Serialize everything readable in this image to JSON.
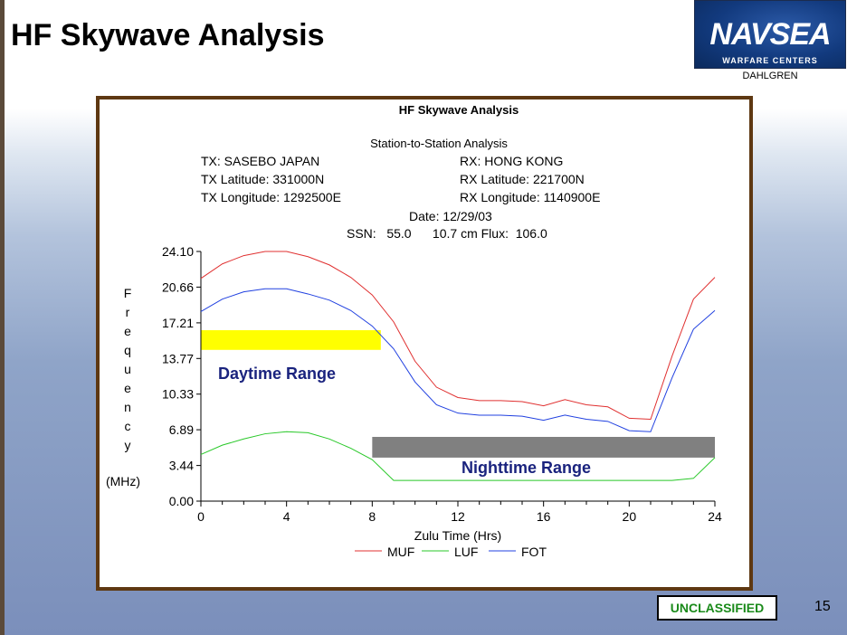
{
  "slide": {
    "title": "HF Skywave Analysis",
    "logo": {
      "main": "NAVSEA",
      "sub": "WARFARE CENTERS",
      "site": "DAHLGREN"
    },
    "classification": "UNCLASSIFIED",
    "page_number": "15"
  },
  "colors": {
    "MUF": "#e03030",
    "LUF": "#28c828",
    "FOT": "#2040e0",
    "daytime_bar": "#ffff00",
    "nighttime_bar": "#808080",
    "annotation_text": "#1a237e",
    "frame": "#5e3812"
  },
  "chart_data": {
    "type": "line",
    "title": "HF Skywave Analysis",
    "header": {
      "analysis": "Station-to-Station Analysis",
      "tx": "TX:  SASEBO JAPAN",
      "tx_lat": "TX Latitude:  331000N",
      "tx_lon": "TX Longitude:  1292500E",
      "rx": "RX:  HONG KONG",
      "rx_lat": "RX Latitude:  221700N",
      "rx_lon": "RX Longitude:  1140900E",
      "date": "Date:  12/29/03",
      "ssn": "SSN:   55.0      10.7 cm Flux:  106.0"
    },
    "ylabel_letters": [
      "F",
      "r",
      "e",
      "q",
      "u",
      "e",
      "n",
      "c",
      "y"
    ],
    "ylabel_unit": "(MHz)",
    "xlabel": "Zulu Time (Hrs)",
    "xlim": [
      0,
      24
    ],
    "ylim": [
      0,
      24.1
    ],
    "x_ticks": [
      "0",
      "4",
      "8",
      "12",
      "16",
      "20",
      "24"
    ],
    "y_ticks": [
      "0.00",
      "3.44",
      "6.89",
      "10.33",
      "13.77",
      "17.21",
      "20.66",
      "24.10"
    ],
    "x": [
      0,
      1,
      2,
      3,
      4,
      5,
      6,
      7,
      8,
      9,
      10,
      11,
      12,
      13,
      14,
      15,
      16,
      17,
      18,
      19,
      20,
      21,
      22,
      23,
      24
    ],
    "series": [
      {
        "name": "MUF",
        "values": [
          21.5,
          22.9,
          23.7,
          24.1,
          24.1,
          23.6,
          22.8,
          21.6,
          19.9,
          17.3,
          13.5,
          11.0,
          10.0,
          9.7,
          9.7,
          9.6,
          9.2,
          9.8,
          9.3,
          9.1,
          8.0,
          7.9,
          14.0,
          19.5,
          21.6
        ]
      },
      {
        "name": "LUF",
        "values": [
          4.5,
          5.4,
          6.0,
          6.5,
          6.7,
          6.6,
          6.0,
          5.1,
          4.0,
          2.0,
          2.0,
          2.0,
          2.0,
          2.0,
          2.0,
          2.0,
          2.0,
          2.0,
          2.0,
          2.0,
          2.0,
          2.0,
          2.0,
          2.2,
          4.2
        ]
      },
      {
        "name": "FOT",
        "values": [
          18.3,
          19.5,
          20.2,
          20.5,
          20.5,
          20.0,
          19.4,
          18.4,
          16.9,
          14.7,
          11.5,
          9.3,
          8.5,
          8.3,
          8.3,
          8.2,
          7.8,
          8.3,
          7.9,
          7.7,
          6.8,
          6.7,
          11.9,
          16.6,
          18.4
        ]
      }
    ],
    "annotations": [
      {
        "label": "Daytime Range",
        "x_range": [
          0,
          8.4
        ],
        "y_range": [
          14.6,
          16.5
        ]
      },
      {
        "label": "Nighttime Range",
        "x_range": [
          8,
          24
        ],
        "y_range": [
          4.2,
          6.2
        ]
      }
    ],
    "legend": {
      "placement": "bottom",
      "entries": [
        "MUF",
        "LUF",
        "FOT"
      ]
    },
    "grid": false
  }
}
